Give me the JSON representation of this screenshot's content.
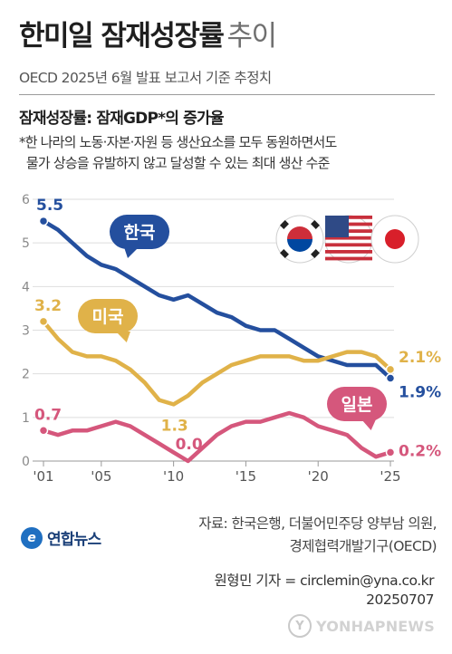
{
  "header": {
    "title_bold": "한미일 잠재성장률",
    "title_light": "추이",
    "subtitle": "OECD 2025년 6월 발표 보고서 기준 추정치",
    "definition": "잠재성장률: 잠재GDP*의 증가율",
    "note": "*한 나라의 노동·자본·자원 등 생산요소를 모두 동원하면서도\n  물가 상승을 유발하지 않고 달성할 수 있는 최대 생산 수준"
  },
  "chart_data": {
    "type": "line",
    "x": [
      2001,
      2002,
      2003,
      2004,
      2005,
      2006,
      2007,
      2008,
      2009,
      2010,
      2011,
      2012,
      2013,
      2014,
      2015,
      2016,
      2017,
      2018,
      2019,
      2020,
      2021,
      2022,
      2023,
      2024,
      2025
    ],
    "x_ticks": [
      2001,
      2005,
      2010,
      2015,
      2020,
      2025
    ],
    "x_tick_labels": [
      "'01",
      "'05",
      "'10",
      "'15",
      "'20",
      "'25"
    ],
    "ylim": [
      0,
      6
    ],
    "y_ticks": [
      0,
      1,
      2,
      3,
      4,
      5,
      6
    ],
    "y_tick_labels": [
      "0",
      "1",
      "2",
      "3",
      "4",
      "5",
      "6"
    ],
    "grid": true,
    "series": [
      {
        "name": "한국",
        "color": "#244f9e",
        "values": [
          5.5,
          5.3,
          5.0,
          4.7,
          4.5,
          4.4,
          4.2,
          4.0,
          3.8,
          3.7,
          3.8,
          3.6,
          3.4,
          3.3,
          3.1,
          3.0,
          3.0,
          2.8,
          2.6,
          2.4,
          2.3,
          2.2,
          2.2,
          2.2,
          1.9
        ],
        "start_label": "5.5",
        "end_label": "1.9%"
      },
      {
        "name": "미국",
        "color": "#e0b249",
        "values": [
          3.2,
          2.8,
          2.5,
          2.4,
          2.4,
          2.3,
          2.1,
          1.8,
          1.4,
          1.3,
          1.5,
          1.8,
          2.0,
          2.2,
          2.3,
          2.4,
          2.4,
          2.4,
          2.3,
          2.3,
          2.4,
          2.5,
          2.5,
          2.4,
          2.1
        ],
        "start_label": "3.2",
        "min_label": "1.3",
        "end_label": "2.1%"
      },
      {
        "name": "일본",
        "color": "#d5577c",
        "values": [
          0.7,
          0.6,
          0.7,
          0.7,
          0.8,
          0.9,
          0.8,
          0.6,
          0.4,
          0.2,
          0.0,
          0.3,
          0.6,
          0.8,
          0.9,
          0.9,
          1.0,
          1.1,
          1.0,
          0.8,
          0.7,
          0.6,
          0.3,
          0.1,
          0.2
        ],
        "start_label": "0.7",
        "min_label": "0.0",
        "end_label": "0.2%"
      }
    ]
  },
  "footer": {
    "source": "자료: 한국은행, 더불어민주당 양부남 의원,\n경제협력개발기구(OECD)",
    "logo_text": "연합뉴스",
    "logo_mark": "e",
    "reporter": "원형민 기자 = circlemin@yna.co.kr\n20250707",
    "watermark": "YONHAPNEWS",
    "watermark_mark": "Y"
  }
}
